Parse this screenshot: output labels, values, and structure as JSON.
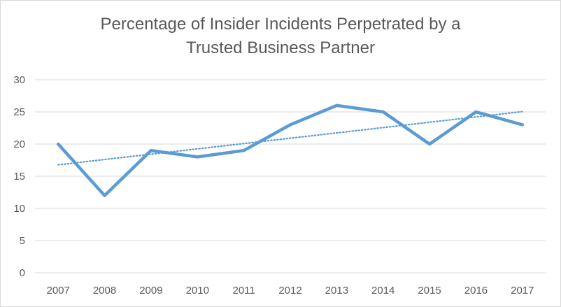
{
  "chart_data": {
    "type": "line",
    "title_lines": [
      "Percentage of Insider Incidents Perpetrated by a",
      "Trusted Business Partner"
    ],
    "categories": [
      "2007",
      "2008",
      "2009",
      "2010",
      "2011",
      "2012",
      "2013",
      "2014",
      "2015",
      "2016",
      "2017"
    ],
    "series": [
      {
        "values": [
          20,
          12,
          19,
          18,
          19,
          23,
          26,
          25,
          20,
          25,
          23
        ],
        "color": "#5b9bd5"
      }
    ],
    "trendline": {
      "type": "linear",
      "style": "dotted",
      "color": "#5b9bd5"
    },
    "ylim": [
      0,
      30
    ],
    "yticks": [
      0,
      5,
      10,
      15,
      20,
      25,
      30
    ],
    "xlabel": "",
    "ylabel": "",
    "grid": true,
    "legend": "none"
  }
}
